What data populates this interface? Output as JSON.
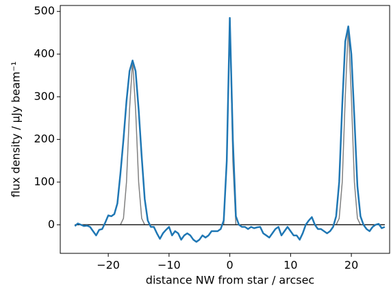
{
  "chart_data": {
    "type": "line",
    "xlabel": "distance NW from star / arcsec",
    "ylabel": "flux density / μJy beam⁻¹",
    "xlim": [
      -27.9,
      26.3
    ],
    "ylim": [
      -67,
      514
    ],
    "xticks": [
      {
        "value": -20,
        "label": "−20"
      },
      {
        "value": -10,
        "label": "−10"
      },
      0,
      10,
      20
    ],
    "yticks": [
      0,
      100,
      200,
      300,
      400,
      500
    ],
    "series": [
      {
        "color": "#808080",
        "width": 1.5,
        "x": [
          -25.5,
          -18,
          -17.5,
          -17,
          -16.5,
          -16,
          -15.5,
          -15,
          -14.5,
          -14,
          -1,
          -0.5,
          0,
          0.5,
          1,
          17.5,
          18,
          18.5,
          19,
          19.5,
          20,
          20.5,
          21,
          21.5,
          25.5
        ],
        "values": [
          0,
          0,
          15,
          100,
          270,
          385,
          270,
          100,
          15,
          0,
          0,
          150,
          480,
          150,
          0,
          0,
          15,
          100,
          300,
          465,
          300,
          100,
          15,
          0,
          0
        ]
      },
      {
        "color": "#222222",
        "width": 1.5,
        "x": [
          -25.5,
          25.5
        ],
        "values": [
          0,
          0
        ]
      },
      {
        "color": "#1f77b4",
        "width": 2.5,
        "x": [
          -25.5,
          -25,
          -24.5,
          -24,
          -23.5,
          -23,
          -22.5,
          -22,
          -21.5,
          -21,
          -20.5,
          -20,
          -19.5,
          -19,
          -18.5,
          -18,
          -17.5,
          -17,
          -16.5,
          -16,
          -15.5,
          -15,
          -14.5,
          -14,
          -13.5,
          -13,
          -12.5,
          -12,
          -11.5,
          -11,
          -10.5,
          -10,
          -9.5,
          -9,
          -8.5,
          -8,
          -7.5,
          -7,
          -6.5,
          -6,
          -5.5,
          -5,
          -4.5,
          -4,
          -3.5,
          -3,
          -2.5,
          -2,
          -1.5,
          -1,
          -0.5,
          0,
          0.5,
          1,
          1.5,
          2,
          2.5,
          3,
          3.5,
          4,
          4.5,
          5,
          5.5,
          6,
          6.5,
          7,
          7.5,
          8,
          8.5,
          9,
          9.5,
          10,
          10.5,
          11,
          11.5,
          12,
          12.5,
          13,
          13.5,
          14,
          14.5,
          15,
          15.5,
          16,
          16.5,
          17,
          17.5,
          18,
          18.5,
          19,
          19.5,
          20,
          20.5,
          21,
          21.5,
          22,
          22.5,
          23,
          23.5,
          24,
          24.5,
          25,
          25.5
        ],
        "values": [
          -3,
          3,
          0,
          -3,
          -2,
          -5,
          -15,
          -25,
          -12,
          -10,
          5,
          22,
          20,
          25,
          50,
          120,
          200,
          290,
          360,
          385,
          360,
          270,
          160,
          60,
          10,
          -5,
          -5,
          -20,
          -33,
          -20,
          -12,
          -5,
          -25,
          -15,
          -20,
          -35,
          -25,
          -20,
          -25,
          -35,
          -40,
          -35,
          -25,
          -30,
          -25,
          -15,
          -15,
          -15,
          -10,
          10,
          150,
          485,
          200,
          20,
          0,
          -5,
          -5,
          -10,
          -5,
          -8,
          -6,
          -5,
          -20,
          -25,
          -30,
          -20,
          -10,
          -5,
          -25,
          -15,
          -5,
          -15,
          -25,
          -25,
          -35,
          -20,
          0,
          10,
          18,
          0,
          -10,
          -10,
          -15,
          -20,
          -15,
          -5,
          20,
          100,
          280,
          430,
          465,
          400,
          250,
          90,
          20,
          0,
          -10,
          -15,
          -5,
          0,
          2,
          -8,
          -5
        ]
      }
    ]
  }
}
